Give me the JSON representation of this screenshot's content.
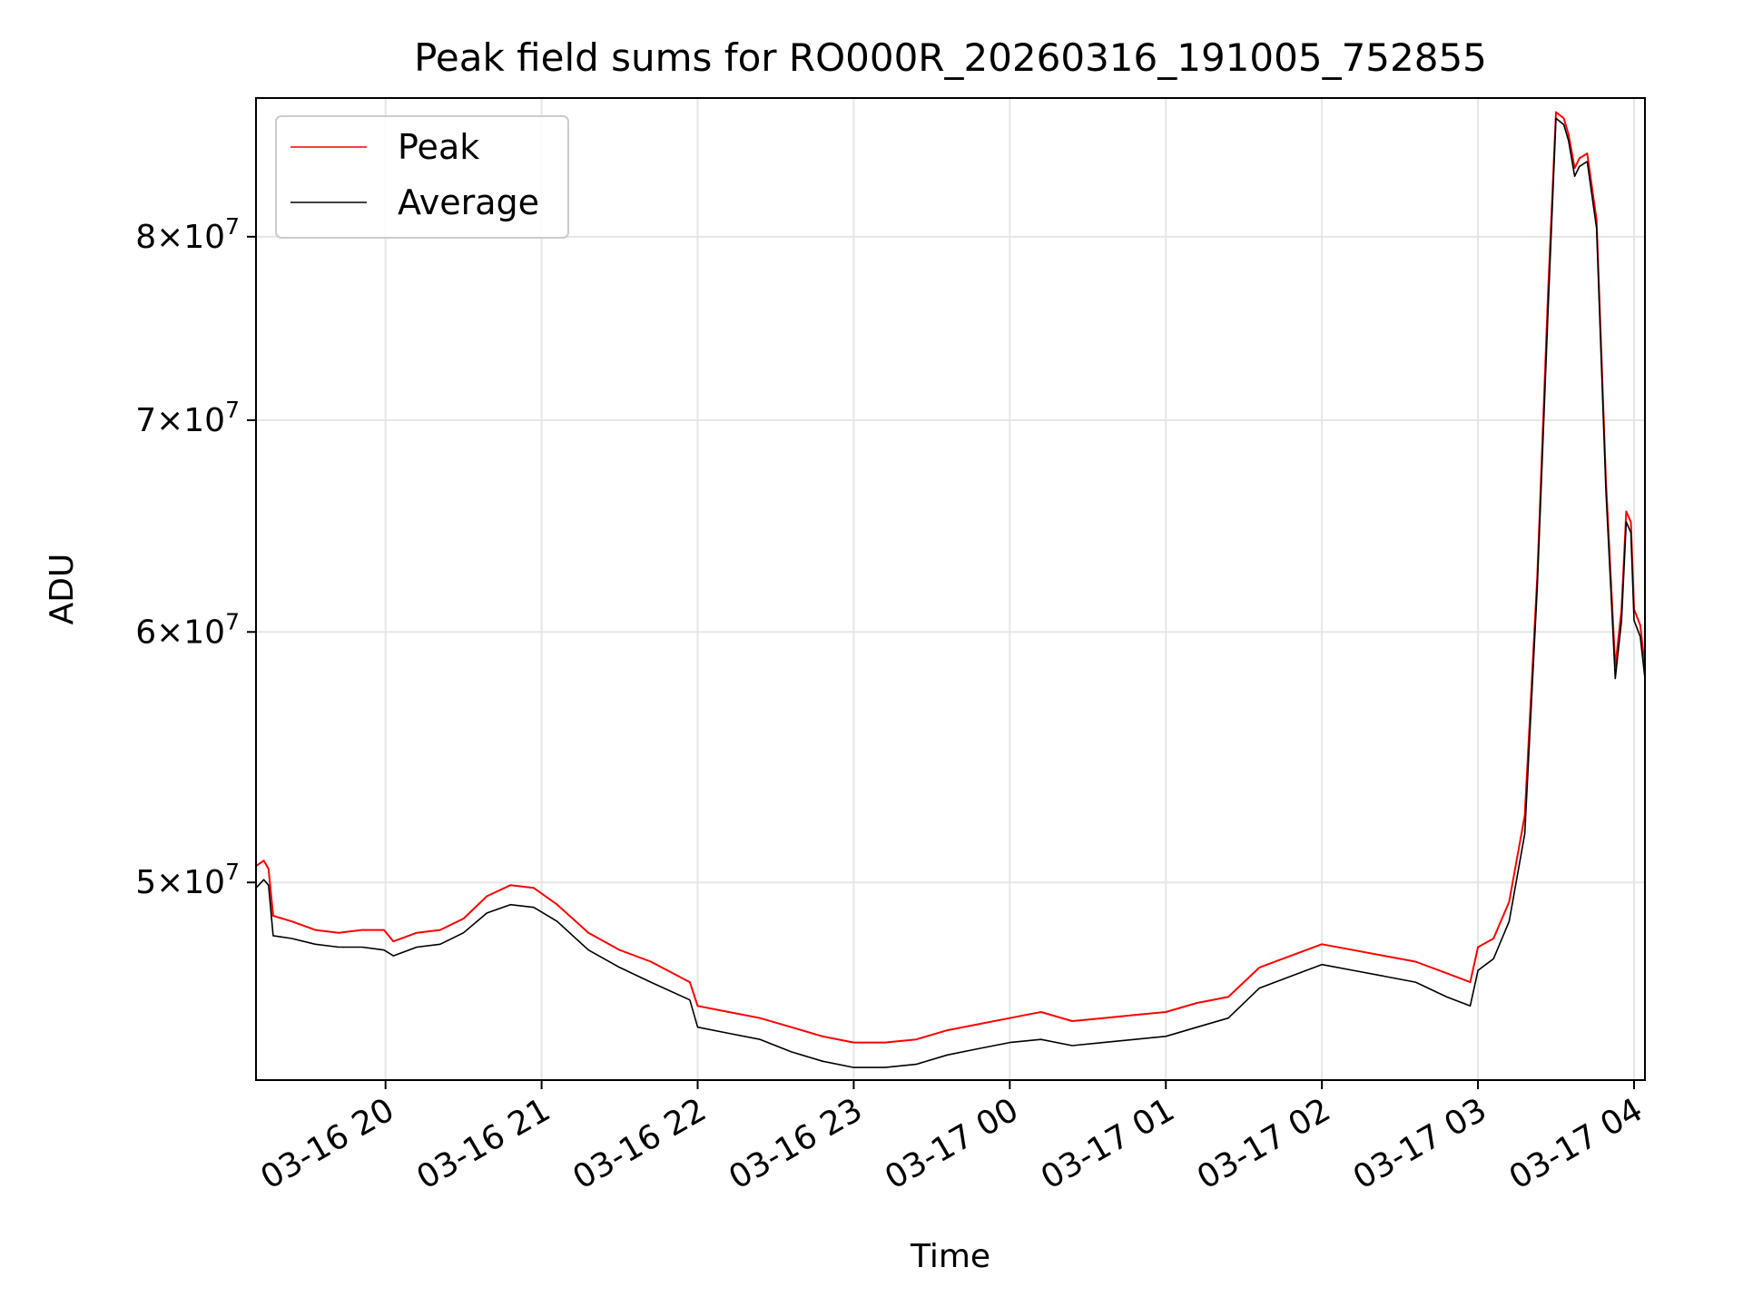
{
  "chart_data": {
    "type": "line",
    "title": "Peak field sums for RO000R_20260316_191005_752855",
    "xlabel": "Time",
    "ylabel": "ADU",
    "yscale": "log",
    "grid": true,
    "legend_position": "top-left",
    "x_unit": "hours since 2026-03-16 00:00",
    "xlim": [
      19.17,
      28.07
    ],
    "ylim": [
      43300000,
      88500000
    ],
    "x_ticks": [
      {
        "value": 20,
        "label": "03-16 20"
      },
      {
        "value": 21,
        "label": "03-16 21"
      },
      {
        "value": 22,
        "label": "03-16 22"
      },
      {
        "value": 23,
        "label": "03-16 23"
      },
      {
        "value": 24,
        "label": "03-17 00"
      },
      {
        "value": 25,
        "label": "03-17 01"
      },
      {
        "value": 26,
        "label": "03-17 02"
      },
      {
        "value": 27,
        "label": "03-17 03"
      },
      {
        "value": 28,
        "label": "03-17 04"
      }
    ],
    "y_ticks": [
      {
        "value": 50000000,
        "mant": "5",
        "exp": "7"
      },
      {
        "value": 60000000,
        "mant": "6",
        "exp": "7"
      },
      {
        "value": 70000000,
        "mant": "7",
        "exp": "7"
      },
      {
        "value": 80000000,
        "mant": "8",
        "exp": "7"
      }
    ],
    "series": [
      {
        "name": "Peak",
        "color": "#ff0000",
        "x": [
          19.17,
          19.22,
          19.25,
          19.28,
          19.4,
          19.55,
          19.7,
          19.85,
          19.99,
          20.05,
          20.2,
          20.35,
          20.5,
          20.65,
          20.8,
          20.95,
          21.1,
          21.3,
          21.5,
          21.7,
          21.95,
          22.0,
          22.2,
          22.4,
          22.6,
          22.8,
          23.0,
          23.2,
          23.4,
          23.6,
          23.8,
          24.0,
          24.2,
          24.4,
          24.6,
          24.8,
          25.0,
          25.2,
          25.4,
          25.6,
          25.8,
          26.0,
          26.2,
          26.4,
          26.6,
          26.8,
          26.95,
          27.0,
          27.1,
          27.2,
          27.3,
          27.38,
          27.45,
          27.5,
          27.55,
          27.58,
          27.62,
          27.65,
          27.7,
          27.76,
          27.82,
          27.88,
          27.92,
          27.95,
          27.98,
          28.0,
          28.04,
          28.07
        ],
        "y": [
          50600000,
          50800000,
          50500000,
          48800000,
          48600000,
          48300000,
          48200000,
          48300000,
          48300000,
          47900000,
          48200000,
          48300000,
          48700000,
          49500000,
          49900000,
          49800000,
          49200000,
          48200000,
          47600000,
          47200000,
          46500000,
          45700000,
          45500000,
          45300000,
          45000000,
          44700000,
          44500000,
          44500000,
          44600000,
          44900000,
          45100000,
          45300000,
          45500000,
          45200000,
          45300000,
          45400000,
          45500000,
          45800000,
          46000000,
          47000000,
          47400000,
          47800000,
          47600000,
          47400000,
          47200000,
          46800000,
          46500000,
          47700000,
          48000000,
          49300000,
          52500000,
          62500000,
          77000000,
          87600000,
          87200000,
          86200000,
          84100000,
          84700000,
          85000000,
          81000000,
          67000000,
          58500000,
          61000000,
          65500000,
          65000000,
          61000000,
          60300000,
          58500000
        ]
      },
      {
        "name": "Average",
        "color": "#000000",
        "x": [
          19.17,
          19.22,
          19.25,
          19.28,
          19.4,
          19.55,
          19.7,
          19.85,
          19.99,
          20.05,
          20.2,
          20.35,
          20.5,
          20.65,
          20.8,
          20.95,
          21.1,
          21.3,
          21.5,
          21.7,
          21.95,
          22.0,
          22.2,
          22.4,
          22.6,
          22.8,
          23.0,
          23.2,
          23.4,
          23.6,
          23.8,
          24.0,
          24.2,
          24.4,
          24.6,
          24.8,
          25.0,
          25.2,
          25.4,
          25.6,
          25.8,
          26.0,
          26.2,
          26.4,
          26.6,
          26.8,
          26.95,
          27.0,
          27.1,
          27.2,
          27.3,
          27.38,
          27.45,
          27.5,
          27.55,
          27.58,
          27.62,
          27.65,
          27.7,
          27.76,
          27.82,
          27.88,
          27.92,
          27.95,
          27.98,
          28.0,
          28.04,
          28.07
        ],
        "y": [
          49800000,
          50100000,
          49900000,
          48100000,
          48000000,
          47800000,
          47700000,
          47700000,
          47600000,
          47400000,
          47700000,
          47800000,
          48200000,
          48900000,
          49200000,
          49100000,
          48600000,
          47600000,
          47000000,
          46500000,
          45900000,
          45000000,
          44800000,
          44600000,
          44200000,
          43900000,
          43700000,
          43700000,
          43800000,
          44100000,
          44300000,
          44500000,
          44600000,
          44400000,
          44500000,
          44600000,
          44700000,
          45000000,
          45300000,
          46300000,
          46700000,
          47100000,
          46900000,
          46700000,
          46500000,
          46000000,
          45700000,
          46900000,
          47300000,
          48600000,
          51800000,
          62000000,
          76000000,
          87200000,
          86800000,
          85800000,
          83600000,
          84200000,
          84500000,
          80500000,
          66500000,
          58000000,
          60500000,
          65000000,
          64500000,
          60500000,
          59800000,
          58000000
        ]
      }
    ]
  }
}
